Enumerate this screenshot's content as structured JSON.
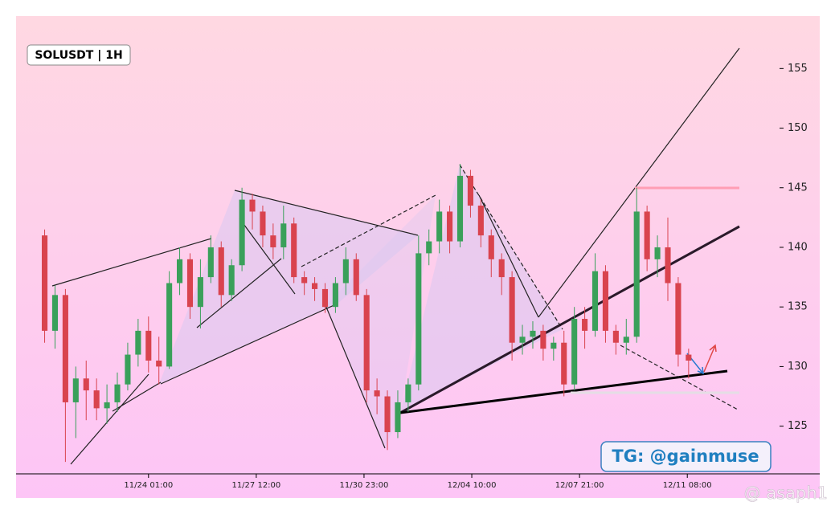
{
  "chart_data": {
    "type": "candlestick",
    "title": "SOLUSDT | 1H",
    "annotations": [
      "TG: @gainmuse",
      "@ asaph1"
    ],
    "x": [
      "11/20 17:00",
      "11/21 01:00",
      "11/21 09:00",
      "11/21 17:00",
      "11/22 01:00",
      "11/22 09:00",
      "11/22 17:00",
      "11/23 01:00",
      "11/23 09:00",
      "11/23 17:00",
      "11/24 01:00",
      "11/24 09:00",
      "11/24 17:00",
      "11/25 01:00",
      "11/25 09:00",
      "11/25 17:00",
      "11/26 01:00",
      "11/26 09:00",
      "11/26 17:00",
      "11/27 01:00",
      "11/27 09:00",
      "11/27 17:00",
      "11/28 01:00",
      "11/28 09:00",
      "11/28 17:00",
      "11/29 01:00",
      "11/29 09:00",
      "11/29 17:00",
      "11/30 01:00",
      "11/30 09:00",
      "11/30 17:00",
      "12/01 01:00",
      "12/01 09:00",
      "12/01 17:00",
      "12/02 01:00",
      "12/02 09:00",
      "12/02 17:00",
      "12/03 01:00",
      "12/03 09:00",
      "12/03 17:00",
      "12/04 01:00",
      "12/04 09:00",
      "12/04 17:00",
      "12/05 01:00",
      "12/05 09:00",
      "12/05 17:00",
      "12/06 01:00",
      "12/06 09:00",
      "12/06 17:00",
      "12/07 01:00",
      "12/07 09:00",
      "12/07 17:00",
      "12/08 01:00",
      "12/08 09:00",
      "12/08 17:00",
      "12/09 01:00",
      "12/09 09:00",
      "12/09 17:00",
      "12/10 01:00",
      "12/10 09:00",
      "12/10 17:00",
      "12/11 01:00",
      "12/11 09:00"
    ],
    "open": [
      141,
      133,
      136,
      127,
      129,
      128,
      126.5,
      127,
      128.5,
      131,
      133,
      130.5,
      130,
      137,
      139,
      135,
      137.5,
      140,
      136,
      138.5,
      144,
      143,
      141,
      140,
      142,
      137.5,
      137,
      136.5,
      135,
      137,
      139,
      136,
      128,
      127.5,
      124.5,
      127,
      128.5,
      139.5,
      140.5,
      143,
      140.5,
      146,
      143.5,
      141,
      139,
      137.5,
      132,
      132.5,
      133,
      131.5,
      132,
      128.5,
      134,
      133,
      138,
      133,
      132,
      132.5,
      143,
      139,
      140,
      137,
      131
    ],
    "high": [
      141.5,
      136.8,
      136.5,
      130,
      130.5,
      129,
      128.5,
      129.5,
      132,
      134,
      134.2,
      132.5,
      138,
      140,
      139.5,
      139,
      141,
      140.5,
      139,
      145,
      144.5,
      143.5,
      142,
      143.5,
      142.5,
      138,
      137.5,
      137,
      137.5,
      140,
      139.5,
      136.5,
      129,
      128,
      128,
      129,
      141,
      141.5,
      144,
      143.5,
      147,
      146.5,
      144,
      141.5,
      139.5,
      138,
      133.5,
      133.8,
      133.5,
      132.5,
      133,
      135,
      135,
      139.5,
      138.5,
      133.5,
      134,
      145,
      143.5,
      141,
      142.5,
      137.5,
      131.5
    ],
    "low": [
      132,
      131.5,
      122,
      124,
      125.5,
      125.5,
      125.2,
      126.2,
      128,
      130,
      129.5,
      128.5,
      129.8,
      136,
      134,
      133.2,
      137,
      135,
      135.5,
      138,
      141.5,
      140,
      139,
      139,
      137,
      136,
      135.5,
      134.5,
      134.5,
      136,
      135.5,
      127,
      126,
      123,
      124,
      126.2,
      128,
      138.5,
      139.5,
      139.5,
      140,
      142.5,
      140,
      137.5,
      136,
      130.5,
      131,
      131.5,
      130.5,
      130.5,
      127.5,
      128,
      131.5,
      132.5,
      132,
      131,
      131,
      132,
      138,
      137.5,
      135.5,
      130,
      129
    ],
    "close": [
      133,
      136,
      127,
      129,
      128,
      126.5,
      127,
      128.5,
      131,
      133,
      130.5,
      130,
      137,
      139,
      135,
      137.5,
      140,
      136,
      138.5,
      144,
      143,
      141,
      140,
      142,
      137.5,
      137,
      136.5,
      135,
      137,
      139,
      136,
      128,
      127.5,
      124.5,
      127,
      128.5,
      139.5,
      140.5,
      143,
      140.5,
      146,
      143.5,
      141,
      139,
      137.5,
      132,
      132.5,
      133,
      131.5,
      132,
      128.5,
      134,
      133,
      138,
      133,
      132,
      132.5,
      143,
      139,
      140,
      137,
      131,
      130.5
    ],
    "up_color": "#3aa05a",
    "down_color": "#d9434e",
    "xlim": [
      "11/19 19:00",
      "12/15 14:00"
    ],
    "xticks": [
      "11/24 01:00",
      "11/27 12:00",
      "11/30 23:00",
      "12/04 10:00",
      "12/07 21:00",
      "12/11 08:00"
    ],
    "ylim": [
      121,
      159.4
    ],
    "yticks": [
      125,
      130,
      135,
      140,
      145,
      150,
      155
    ]
  }
}
